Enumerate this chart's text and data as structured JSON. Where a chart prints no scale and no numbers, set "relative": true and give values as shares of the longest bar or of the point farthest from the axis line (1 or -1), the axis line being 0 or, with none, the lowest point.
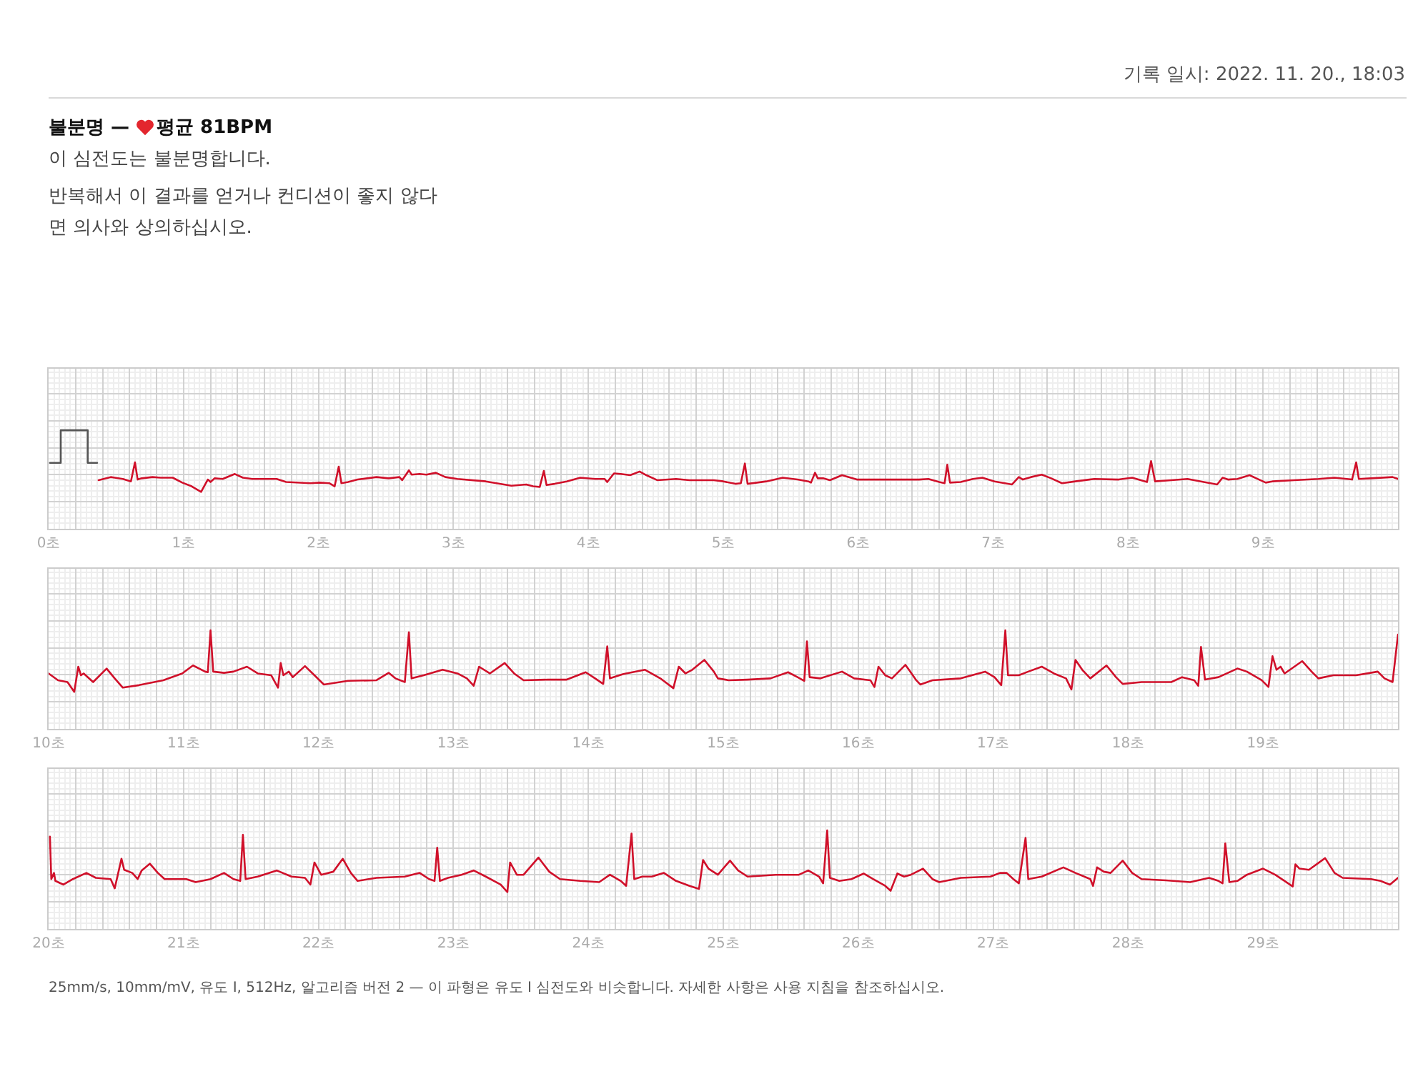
{
  "chart_data": [
    {
      "type": "line",
      "title": "불분명 —",
      "subtitle": "평균 81BPM",
      "annotations": [
        "기록 일시: 2022. 11. 20., 18:03",
        "이 심전도는 불분명합니다.",
        "반복해서 이 결과를 얻거나 컨디션이 좋지 않다면 의사와 상의하십시오."
      ],
      "x": [
        0.37,
        0.46,
        0.49,
        0.55,
        0.61,
        0.64,
        0.66,
        0.69,
        0.77,
        0.83,
        0.92,
        0.99,
        1.06,
        1.13,
        1.18,
        1.2,
        1.23,
        1.29,
        1.38,
        1.44,
        1.51,
        1.69,
        1.76,
        1.94,
        2.01,
        2.08,
        2.12,
        2.15,
        2.17,
        2.22,
        2.29,
        2.43,
        2.52,
        2.6,
        2.62,
        2.67,
        2.69,
        2.75,
        2.8,
        2.87,
        2.94,
        3.03,
        3.24,
        3.43,
        3.54,
        3.59,
        3.64,
        3.67,
        3.69,
        3.75,
        3.84,
        3.94,
        4.05,
        4.12,
        4.14,
        4.19,
        4.24,
        4.31,
        4.38,
        4.43,
        4.51,
        4.65,
        4.75,
        4.93,
        5.0,
        5.09,
        5.13,
        5.16,
        5.18,
        5.25,
        5.32,
        5.44,
        5.55,
        5.63,
        5.65,
        5.68,
        5.7,
        5.74,
        5.79,
        5.88,
        5.99,
        6.34,
        6.45,
        6.52,
        6.6,
        6.64,
        6.66,
        6.68,
        6.76,
        6.85,
        6.92,
        7.01,
        7.14,
        7.19,
        7.22,
        7.28,
        7.36,
        7.43,
        7.51,
        7.61,
        7.75,
        7.93,
        8.03,
        8.14,
        8.17,
        8.2,
        8.32,
        8.44,
        8.56,
        8.66,
        8.7,
        8.74,
        8.81,
        8.9,
        8.97,
        9.02,
        9.07,
        9.23,
        9.41,
        9.53,
        9.66,
        9.69,
        9.71,
        9.8,
        9.96,
        10.0
      ],
      "series": [
        {
          "color": "#d0102a",
          "values": [
            0.19,
            0.24,
            0.23,
            0.21,
            0.17,
            0.48,
            0.2,
            0.22,
            0.24,
            0.23,
            0.23,
            0.15,
            0.09,
            0,
            0.2,
            0.16,
            0.22,
            0.21,
            0.29,
            0.23,
            0.21,
            0.21,
            0.16,
            0.14,
            0.15,
            0.14,
            0.09,
            0.41,
            0.14,
            0.16,
            0.2,
            0.24,
            0.22,
            0.24,
            0.19,
            0.35,
            0.28,
            0.29,
            0.28,
            0.31,
            0.24,
            0.21,
            0.17,
            0.1,
            0.12,
            0.09,
            0.08,
            0.34,
            0.11,
            0.13,
            0.17,
            0.23,
            0.21,
            0.21,
            0.16,
            0.3,
            0.29,
            0.27,
            0.33,
            0.27,
            0.19,
            0.21,
            0.19,
            0.19,
            0.17,
            0.13,
            0.14,
            0.46,
            0.13,
            0.15,
            0.17,
            0.23,
            0.2,
            0.17,
            0.15,
            0.31,
            0.22,
            0.22,
            0.19,
            0.27,
            0.2,
            0.2,
            0.2,
            0.21,
            0.16,
            0.14,
            0.44,
            0.15,
            0.16,
            0.21,
            0.23,
            0.17,
            0.12,
            0.24,
            0.2,
            0.24,
            0.28,
            0.22,
            0.14,
            0.17,
            0.21,
            0.2,
            0.23,
            0.16,
            0.5,
            0.17,
            0.19,
            0.21,
            0.16,
            0.12,
            0.23,
            0.2,
            0.21,
            0.27,
            0.2,
            0.15,
            0.17,
            0.19,
            0.21,
            0.23,
            0.2,
            0.48,
            0.21,
            0.22,
            0.24,
            0.21
          ]
        },
        {
          "color": "#555555",
          "x": [
            0.01,
            0.09,
            0.09,
            0.29,
            0.29,
            0.36
          ],
          "values": [
            0.47,
            0.47,
            1,
            1,
            0.47,
            0.47
          ]
        }
      ],
      "relative": true,
      "xlim": [
        0,
        10
      ],
      "xticks": [
        {
          "value": 0,
          "label": "0초"
        },
        {
          "value": 0.2,
          "label": null
        },
        {
          "value": 0.4,
          "label": null
        },
        {
          "value": 0.6,
          "label": null
        },
        {
          "value": 0.8,
          "label": null
        },
        {
          "value": 1,
          "label": "1초"
        },
        {
          "value": 1.2,
          "label": null
        },
        {
          "value": 1.4,
          "label": null
        },
        {
          "value": 1.6,
          "label": null
        },
        {
          "value": 1.8,
          "label": null
        },
        {
          "value": 2,
          "label": "2초"
        },
        {
          "value": 2.2,
          "label": null
        },
        {
          "value": 2.4,
          "label": null
        },
        {
          "value": 2.6,
          "label": null
        },
        {
          "value": 2.8,
          "label": null
        },
        {
          "value": 3,
          "label": "3초"
        },
        {
          "value": 3.2,
          "label": null
        },
        {
          "value": 3.4,
          "label": null
        },
        {
          "value": 3.6,
          "label": null
        },
        {
          "value": 3.8,
          "label": null
        },
        {
          "value": 4,
          "label": "4초"
        },
        {
          "value": 4.2,
          "label": null
        },
        {
          "value": 4.4,
          "label": null
        },
        {
          "value": 4.6,
          "label": null
        },
        {
          "value": 4.8,
          "label": null
        },
        {
          "value": 5,
          "label": "5초"
        },
        {
          "value": 5.2,
          "label": null
        },
        {
          "value": 5.4,
          "label": null
        },
        {
          "value": 5.6,
          "label": null
        },
        {
          "value": 5.8,
          "label": null
        },
        {
          "value": 6,
          "label": "6초"
        },
        {
          "value": 6.2,
          "label": null
        },
        {
          "value": 6.4,
          "label": null
        },
        {
          "value": 6.6,
          "label": null
        },
        {
          "value": 6.8,
          "label": null
        },
        {
          "value": 7,
          "label": "7초"
        },
        {
          "value": 7.2,
          "label": null
        },
        {
          "value": 7.4,
          "label": null
        },
        {
          "value": 7.6,
          "label": null
        },
        {
          "value": 7.8,
          "label": null
        },
        {
          "value": 8,
          "label": "8초"
        },
        {
          "value": 8.2,
          "label": null
        },
        {
          "value": 8.4,
          "label": null
        },
        {
          "value": 8.6,
          "label": null
        },
        {
          "value": 8.8,
          "label": null
        },
        {
          "value": 9,
          "label": "9초"
        },
        {
          "value": 9.2,
          "label": null
        },
        {
          "value": 9.4,
          "label": null
        },
        {
          "value": 9.6,
          "label": null
        },
        {
          "value": 9.8,
          "label": null
        },
        {
          "value": 10,
          "label": null
        }
      ],
      "grid": true,
      "tick_labels": "x"
    },
    {
      "type": "line",
      "x": [
        10.0,
        10.07,
        10.14,
        10.19,
        10.22,
        10.24,
        10.26,
        10.33,
        10.43,
        10.49,
        10.55,
        10.67,
        10.85,
        10.99,
        11.07,
        11.16,
        11.18,
        11.2,
        11.22,
        11.3,
        11.37,
        11.47,
        11.55,
        11.65,
        11.7,
        11.72,
        11.74,
        11.78,
        11.81,
        11.9,
        11.97,
        12.04,
        12.22,
        12.43,
        12.52,
        12.57,
        12.64,
        12.67,
        12.69,
        12.78,
        12.92,
        13.03,
        13.1,
        13.15,
        13.19,
        13.27,
        13.38,
        13.45,
        13.52,
        13.7,
        13.84,
        13.98,
        14.05,
        14.11,
        14.14,
        14.16,
        14.26,
        14.42,
        14.54,
        14.63,
        14.67,
        14.72,
        14.77,
        14.86,
        14.93,
        14.96,
        15.04,
        15.18,
        15.35,
        15.48,
        15.55,
        15.6,
        15.62,
        15.64,
        15.72,
        15.88,
        15.97,
        16.09,
        16.12,
        16.15,
        16.2,
        16.25,
        16.35,
        16.43,
        16.46,
        16.55,
        16.76,
        16.94,
        17.01,
        17.06,
        17.09,
        17.11,
        17.19,
        17.26,
        17.36,
        17.45,
        17.54,
        17.58,
        17.61,
        17.66,
        17.72,
        17.84,
        17.91,
        17.96,
        18.1,
        18.32,
        18.4,
        18.49,
        18.52,
        18.54,
        18.57,
        18.67,
        18.81,
        18.88,
        18.99,
        19.04,
        19.07,
        19.1,
        19.13,
        19.16,
        19.29,
        19.36,
        19.41,
        19.52,
        19.69,
        19.85,
        19.9,
        19.96,
        20.0
      ],
      "series": [
        {
          "color": "#d0102a",
          "values": [
            0.3,
            0.19,
            0.16,
            0,
            0.41,
            0.27,
            0.3,
            0.16,
            0.38,
            0.22,
            0.07,
            0.11,
            0.19,
            0.3,
            0.43,
            0.33,
            0.32,
            1,
            0.33,
            0.31,
            0.33,
            0.41,
            0.3,
            0.27,
            0.07,
            0.47,
            0.27,
            0.33,
            0.24,
            0.42,
            0.27,
            0.12,
            0.18,
            0.19,
            0.31,
            0.22,
            0.16,
            0.97,
            0.22,
            0.27,
            0.36,
            0.3,
            0.22,
            0.1,
            0.41,
            0.3,
            0.47,
            0.3,
            0.19,
            0.2,
            0.2,
            0.32,
            0.22,
            0.13,
            0.74,
            0.22,
            0.29,
            0.36,
            0.21,
            0.06,
            0.41,
            0.3,
            0.36,
            0.52,
            0.33,
            0.22,
            0.19,
            0.2,
            0.22,
            0.32,
            0.24,
            0.18,
            0.82,
            0.24,
            0.22,
            0.33,
            0.22,
            0.19,
            0.08,
            0.41,
            0.27,
            0.22,
            0.44,
            0.19,
            0.12,
            0.19,
            0.22,
            0.33,
            0.24,
            0.11,
            1,
            0.27,
            0.27,
            0.33,
            0.41,
            0.3,
            0.22,
            0.04,
            0.52,
            0.36,
            0.22,
            0.43,
            0.24,
            0.13,
            0.16,
            0.16,
            0.24,
            0.19,
            0.1,
            0.73,
            0.2,
            0.24,
            0.38,
            0.33,
            0.19,
            0.08,
            0.58,
            0.36,
            0.41,
            0.3,
            0.5,
            0.33,
            0.22,
            0.27,
            0.27,
            0.33,
            0.22,
            0.16,
            0.93
          ]
        }
      ],
      "relative": true,
      "xlim": [
        10,
        20
      ],
      "xticks": [
        {
          "value": 10,
          "label": "10초"
        },
        {
          "value": 10.2,
          "label": null
        },
        {
          "value": 10.4,
          "label": null
        },
        {
          "value": 10.6,
          "label": null
        },
        {
          "value": 10.8,
          "label": null
        },
        {
          "value": 11,
          "label": "11초"
        },
        {
          "value": 11.2,
          "label": null
        },
        {
          "value": 11.4,
          "label": null
        },
        {
          "value": 11.6,
          "label": null
        },
        {
          "value": 11.8,
          "label": null
        },
        {
          "value": 12,
          "label": "12초"
        },
        {
          "value": 12.2,
          "label": null
        },
        {
          "value": 12.4,
          "label": null
        },
        {
          "value": 12.6,
          "label": null
        },
        {
          "value": 12.8,
          "label": null
        },
        {
          "value": 13,
          "label": "13초"
        },
        {
          "value": 13.2,
          "label": null
        },
        {
          "value": 13.4,
          "label": null
        },
        {
          "value": 13.6,
          "label": null
        },
        {
          "value": 13.8,
          "label": null
        },
        {
          "value": 14,
          "label": "14초"
        },
        {
          "value": 14.2,
          "label": null
        },
        {
          "value": 14.4,
          "label": null
        },
        {
          "value": 14.6,
          "label": null
        },
        {
          "value": 14.8,
          "label": null
        },
        {
          "value": 15,
          "label": "15초"
        },
        {
          "value": 15.2,
          "label": null
        },
        {
          "value": 15.4,
          "label": null
        },
        {
          "value": 15.6,
          "label": null
        },
        {
          "value": 15.8,
          "label": null
        },
        {
          "value": 16,
          "label": "16초"
        },
        {
          "value": 16.2,
          "label": null
        },
        {
          "value": 16.4,
          "label": null
        },
        {
          "value": 16.6,
          "label": null
        },
        {
          "value": 16.8,
          "label": null
        },
        {
          "value": 17,
          "label": "17초"
        },
        {
          "value": 17.2,
          "label": null
        },
        {
          "value": 17.4,
          "label": null
        },
        {
          "value": 17.6,
          "label": null
        },
        {
          "value": 17.8,
          "label": null
        },
        {
          "value": 18,
          "label": "18초"
        },
        {
          "value": 18.2,
          "label": null
        },
        {
          "value": 18.4,
          "label": null
        },
        {
          "value": 18.6,
          "label": null
        },
        {
          "value": 18.8,
          "label": null
        },
        {
          "value": 19,
          "label": "19초"
        },
        {
          "value": 19.2,
          "label": null
        },
        {
          "value": 19.4,
          "label": null
        },
        {
          "value": 19.6,
          "label": null
        },
        {
          "value": 19.8,
          "label": null
        },
        {
          "value": 20,
          "label": null
        }
      ],
      "grid": true,
      "tick_labels": "x"
    },
    {
      "type": "line",
      "annotations": [
        "25mm/s, 10mm/mV, 유도 I, 512Hz, 알고리즘 버전 2 — 이 파형은 유도 I 심전도와 비슷합니다. 자세한 사항은 사용 지침을 참조하십시오."
      ],
      "x": [
        20.01,
        20.02,
        20.04,
        20.05,
        20.11,
        20.18,
        20.28,
        20.35,
        20.46,
        20.49,
        20.54,
        20.56,
        20.62,
        20.66,
        20.69,
        20.75,
        20.81,
        20.86,
        21.02,
        21.09,
        21.2,
        21.3,
        21.37,
        21.42,
        21.44,
        21.46,
        21.55,
        21.69,
        21.8,
        21.9,
        21.94,
        21.97,
        22.02,
        22.11,
        22.18,
        22.24,
        22.29,
        22.43,
        22.64,
        22.75,
        22.82,
        22.86,
        22.88,
        22.9,
        22.96,
        23.06,
        23.15,
        23.24,
        23.35,
        23.4,
        23.42,
        23.47,
        23.52,
        23.63,
        23.71,
        23.79,
        23.94,
        24.08,
        24.16,
        24.24,
        24.28,
        24.32,
        24.34,
        24.4,
        24.47,
        24.56,
        24.65,
        24.75,
        24.82,
        24.85,
        24.89,
        24.96,
        25.05,
        25.11,
        25.18,
        25.39,
        25.56,
        25.63,
        25.71,
        25.74,
        25.77,
        25.79,
        25.86,
        25.95,
        26.04,
        26.11,
        26.2,
        26.24,
        26.29,
        26.34,
        26.39,
        26.48,
        26.55,
        26.6,
        26.76,
        26.98,
        27.05,
        27.1,
        27.15,
        27.19,
        27.24,
        27.26,
        27.36,
        27.52,
        27.61,
        27.72,
        27.74,
        27.77,
        27.82,
        27.87,
        27.96,
        28.03,
        28.1,
        28.28,
        28.46,
        28.6,
        28.67,
        28.7,
        28.72,
        28.75,
        28.81,
        28.88,
        29.0,
        29.09,
        29.16,
        29.22,
        29.24,
        29.27,
        29.34,
        29.46,
        29.53,
        29.59,
        29.8,
        29.87,
        29.94,
        30.0
      ],
      "series": [
        {
          "color": "#d0102a",
          "values": [
            0.9,
            0.21,
            0.31,
            0.18,
            0.12,
            0.21,
            0.31,
            0.23,
            0.21,
            0.06,
            0.54,
            0.36,
            0.31,
            0.21,
            0.35,
            0.46,
            0.31,
            0.21,
            0.21,
            0.16,
            0.21,
            0.31,
            0.21,
            0.18,
            0.93,
            0.21,
            0.25,
            0.35,
            0.25,
            0.23,
            0.12,
            0.48,
            0.28,
            0.33,
            0.54,
            0.31,
            0.18,
            0.23,
            0.25,
            0.31,
            0.21,
            0.18,
            0.72,
            0.18,
            0.23,
            0.28,
            0.35,
            0.25,
            0.12,
            0,
            0.48,
            0.28,
            0.28,
            0.56,
            0.33,
            0.21,
            0.18,
            0.16,
            0.28,
            0.18,
            0.1,
            0.95,
            0.21,
            0.25,
            0.25,
            0.31,
            0.18,
            0.1,
            0.05,
            0.52,
            0.38,
            0.28,
            0.51,
            0.35,
            0.25,
            0.28,
            0.28,
            0.35,
            0.25,
            0.14,
            1,
            0.23,
            0.18,
            0.21,
            0.3,
            0.21,
            0.1,
            0.02,
            0.3,
            0.25,
            0.28,
            0.38,
            0.21,
            0.16,
            0.23,
            0.25,
            0.31,
            0.31,
            0.21,
            0.14,
            0.88,
            0.21,
            0.25,
            0.4,
            0.31,
            0.21,
            0.1,
            0.4,
            0.33,
            0.31,
            0.51,
            0.31,
            0.21,
            0.19,
            0.16,
            0.23,
            0.18,
            0.14,
            0.79,
            0.16,
            0.18,
            0.28,
            0.38,
            0.28,
            0.18,
            0.09,
            0.45,
            0.38,
            0.36,
            0.55,
            0.31,
            0.23,
            0.21,
            0.18,
            0.12,
            0.23
          ]
        }
      ],
      "relative": true,
      "xlim": [
        20,
        30
      ],
      "xticks": [
        {
          "value": 20,
          "label": "20초"
        },
        {
          "value": 20.2,
          "label": null
        },
        {
          "value": 20.4,
          "label": null
        },
        {
          "value": 20.6,
          "label": null
        },
        {
          "value": 20.8,
          "label": null
        },
        {
          "value": 21,
          "label": "21초"
        },
        {
          "value": 21.2,
          "label": null
        },
        {
          "value": 21.4,
          "label": null
        },
        {
          "value": 21.6,
          "label": null
        },
        {
          "value": 21.8,
          "label": null
        },
        {
          "value": 22,
          "label": "22초"
        },
        {
          "value": 22.2,
          "label": null
        },
        {
          "value": 22.4,
          "label": null
        },
        {
          "value": 22.6,
          "label": null
        },
        {
          "value": 22.8,
          "label": null
        },
        {
          "value": 23,
          "label": "23초"
        },
        {
          "value": 23.2,
          "label": null
        },
        {
          "value": 23.4,
          "label": null
        },
        {
          "value": 23.6,
          "label": null
        },
        {
          "value": 23.8,
          "label": null
        },
        {
          "value": 24,
          "label": "24초"
        },
        {
          "value": 24.2,
          "label": null
        },
        {
          "value": 24.4,
          "label": null
        },
        {
          "value": 24.6,
          "label": null
        },
        {
          "value": 24.8,
          "label": null
        },
        {
          "value": 25,
          "label": "25초"
        },
        {
          "value": 25.2,
          "label": null
        },
        {
          "value": 25.4,
          "label": null
        },
        {
          "value": 25.6,
          "label": null
        },
        {
          "value": 25.8,
          "label": null
        },
        {
          "value": 26,
          "label": "26초"
        },
        {
          "value": 26.2,
          "label": null
        },
        {
          "value": 26.4,
          "label": null
        },
        {
          "value": 26.6,
          "label": null
        },
        {
          "value": 26.8,
          "label": null
        },
        {
          "value": 27,
          "label": "27초"
        },
        {
          "value": 27.2,
          "label": null
        },
        {
          "value": 27.4,
          "label": null
        },
        {
          "value": 27.6,
          "label": null
        },
        {
          "value": 27.8,
          "label": null
        },
        {
          "value": 28,
          "label": "28초"
        },
        {
          "value": 28.2,
          "label": null
        },
        {
          "value": 28.4,
          "label": null
        },
        {
          "value": 28.6,
          "label": null
        },
        {
          "value": 28.8,
          "label": null
        },
        {
          "value": 29,
          "label": "29초"
        },
        {
          "value": 29.2,
          "label": null
        },
        {
          "value": 29.4,
          "label": null
        },
        {
          "value": 29.6,
          "label": null
        },
        {
          "value": 29.8,
          "label": null
        },
        {
          "value": 30,
          "label": null
        }
      ],
      "grid": true,
      "tick_labels": "x"
    }
  ]
}
